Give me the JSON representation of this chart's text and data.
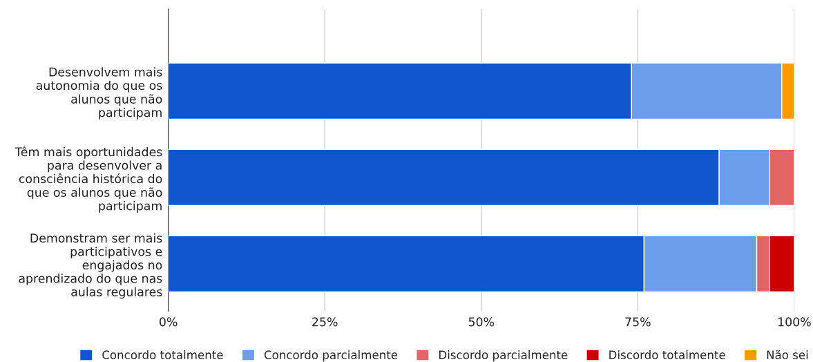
{
  "chart_data": {
    "type": "bar",
    "orientation": "horizontal",
    "stacked": true,
    "categories": [
      "Desenvolvem mais\nautonomia do que os\nalunos que não\nparticipam",
      "Têm mais oportunidades\npara desenvolver a\nconsciência histórica do\nque os alunos que não\nparticipam",
      "Demonstram ser mais\nparticipativos e\nengajados no\naprendizado do que nas\naulas regulares"
    ],
    "series": [
      {
        "name": "Concordo totalmente",
        "color": "#1155cc",
        "values": [
          74,
          88,
          76
        ]
      },
      {
        "name": "Concordo parcialmente",
        "color": "#6d9eeb",
        "values": [
          24,
          8,
          18
        ]
      },
      {
        "name": "Discordo parcialmente",
        "color": "#e06666",
        "values": [
          null,
          4,
          2
        ]
      },
      {
        "name": "Discordo totalmente",
        "color": "#cc0000",
        "values": [
          null,
          null,
          4
        ]
      },
      {
        "name": "Não sei",
        "color": "#ff9900",
        "values": [
          2,
          null,
          null
        ]
      }
    ],
    "xlim": [
      0,
      100
    ],
    "xticks": [
      {
        "value": 0,
        "label": "0%"
      },
      {
        "value": 25,
        "label": "25%"
      },
      {
        "value": 50,
        "label": "50%"
      },
      {
        "value": 75,
        "label": "75%"
      },
      {
        "value": 100,
        "label": "100%"
      }
    ],
    "grid": "x",
    "legend": "bottom"
  }
}
